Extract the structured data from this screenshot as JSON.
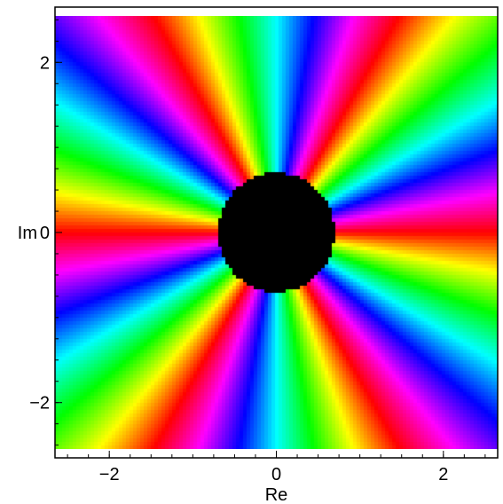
{
  "chart_data": {
    "type": "heatmap",
    "description_of_values": "domain coloring: hue = argument of complex value, black = near-zero region",
    "xlabel": "Re",
    "ylabel": "Im",
    "xlim": [
      -2.65,
      2.65
    ],
    "ylim": [
      -2.65,
      2.65
    ],
    "x_ticks": [
      {
        "value": -2,
        "label": "−2"
      },
      {
        "value": 0,
        "label": "0"
      },
      {
        "value": 2,
        "label": "2"
      }
    ],
    "y_ticks": [
      {
        "value": 2,
        "label": "2"
      },
      {
        "value": 0,
        "label": "0"
      },
      {
        "value": -2,
        "label": "−2"
      }
    ],
    "x_minor_step": 0.25,
    "y_minor_step": 0.25,
    "data_extent": [
      -2.65,
      2.65,
      -2.55,
      2.55
    ],
    "black_disk_radius": 0.7,
    "angular_color_cycles": 6,
    "grid": false
  }
}
